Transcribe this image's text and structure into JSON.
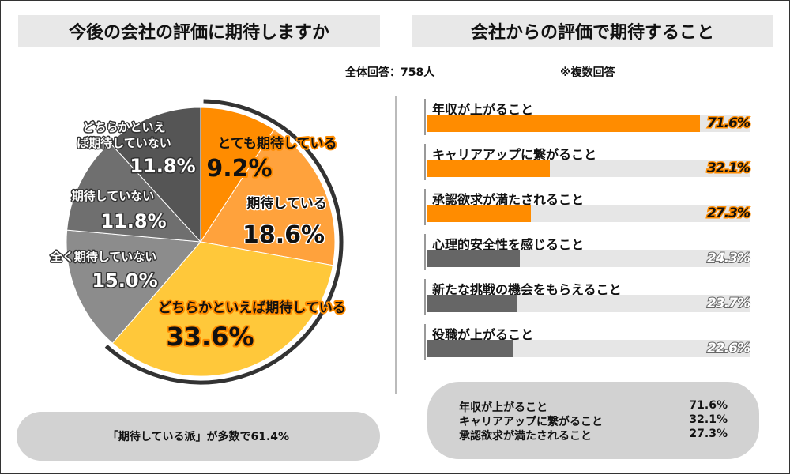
{
  "left": {
    "title": "今後の会社の評価に期待しますか",
    "summary": "「期待している派」が多数で61.4%"
  },
  "right": {
    "title": "会社からの評価で期待すること",
    "respondents": "全体回答：758人",
    "multiple_note": "※複数回答",
    "summary": [
      {
        "label": "年収が上がること",
        "value": "71.6%"
      },
      {
        "label": "キャリアアップに繋がること",
        "value": "32.1%"
      },
      {
        "label": "承認欲求が満たされること",
        "value": "27.3%"
      }
    ]
  },
  "colors": {
    "orange": "#ff8c00",
    "light_orange": "#ffa23c",
    "yellow": "#ffc83a",
    "gray1": "#8c8c8c",
    "gray2": "#6f6f6f",
    "gray3": "#555555",
    "bar_gray": "#666666"
  },
  "chart_data": [
    {
      "type": "pie",
      "slices": [
        {
          "label": "とても期待している",
          "value": 9.2,
          "value_label": "9.2%",
          "color": "#ff8c00"
        },
        {
          "label": "期待している",
          "value": 18.6,
          "value_label": "18.6%",
          "color": "#ffa23c"
        },
        {
          "label": "どちらかといえば期待している",
          "value": 33.6,
          "value_label": "33.6%",
          "color": "#ffc83a"
        },
        {
          "label": "全く期待していない",
          "value": 15.0,
          "value_label": "15.0%",
          "color": "#8c8c8c"
        },
        {
          "label": "期待していない",
          "value": 11.8,
          "value_label": "11.8%",
          "color": "#6f6f6f"
        },
        {
          "label": "どちらかといえば期待していない",
          "value": 11.8,
          "value_label": "11.8%",
          "color": "#555555"
        }
      ]
    },
    {
      "type": "bar",
      "orientation": "horizontal",
      "categories": [
        "年収が上がること",
        "キャリアアップに繋がること",
        "承認欲求が満たされること",
        "心理的安全性を感じること",
        "新たな挑戦の機会をもらえること",
        "役職が上がること"
      ],
      "values": [
        71.6,
        32.1,
        27.3,
        24.3,
        23.7,
        22.6
      ],
      "value_labels": [
        "71.6%",
        "32.1%",
        "27.3%",
        "24.3%",
        "23.7%",
        "22.6%"
      ],
      "xlim": [
        0,
        100
      ]
    }
  ]
}
